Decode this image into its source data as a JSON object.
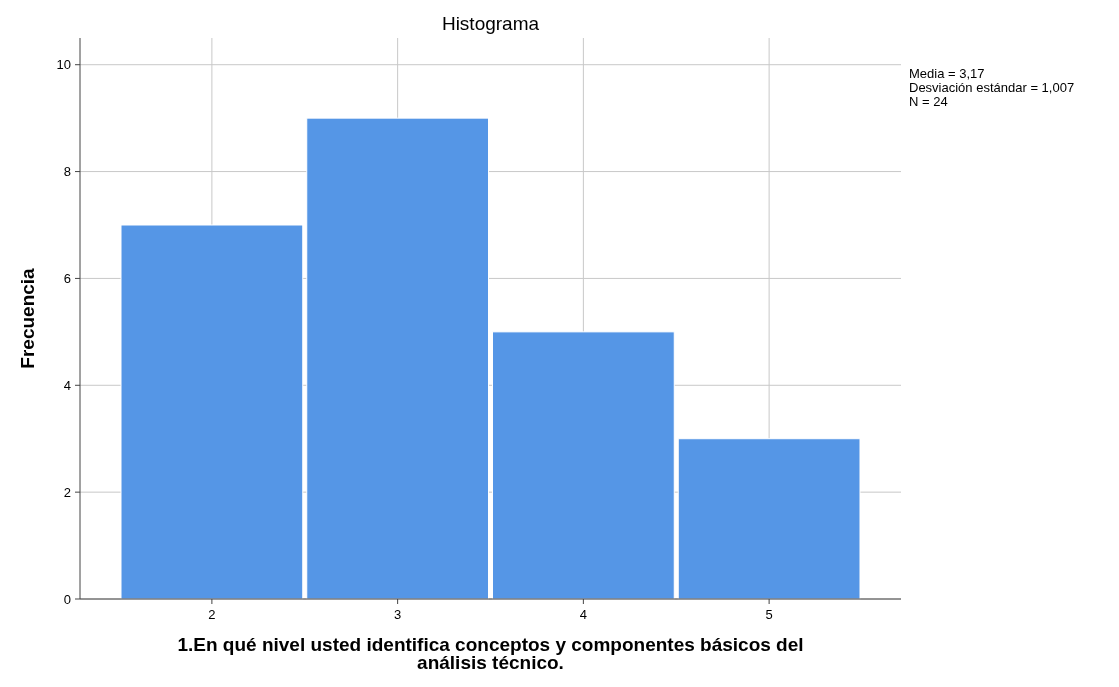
{
  "chart_data": {
    "type": "histogram",
    "title": "Histograma",
    "xlabel": "1.En qué nivel usted identifica conceptos y componentes básicos del análisis técnico.",
    "ylabel": "Frecuencia",
    "bins": [
      1.5,
      2.5,
      3.5,
      4.5,
      5.5
    ],
    "values": [
      7,
      9,
      5,
      3
    ],
    "color": "#5596e6",
    "xlim": [
      1.29,
      5.71
    ],
    "xticks": [
      2,
      3,
      4,
      5
    ],
    "ylim": [
      0,
      10.5
    ],
    "yticks": [
      0,
      2,
      4,
      6,
      8,
      10
    ],
    "grid": true,
    "annotations": [
      "Media = 3,17",
      "Desviación estándar = 1,007",
      "N = 24"
    ]
  }
}
